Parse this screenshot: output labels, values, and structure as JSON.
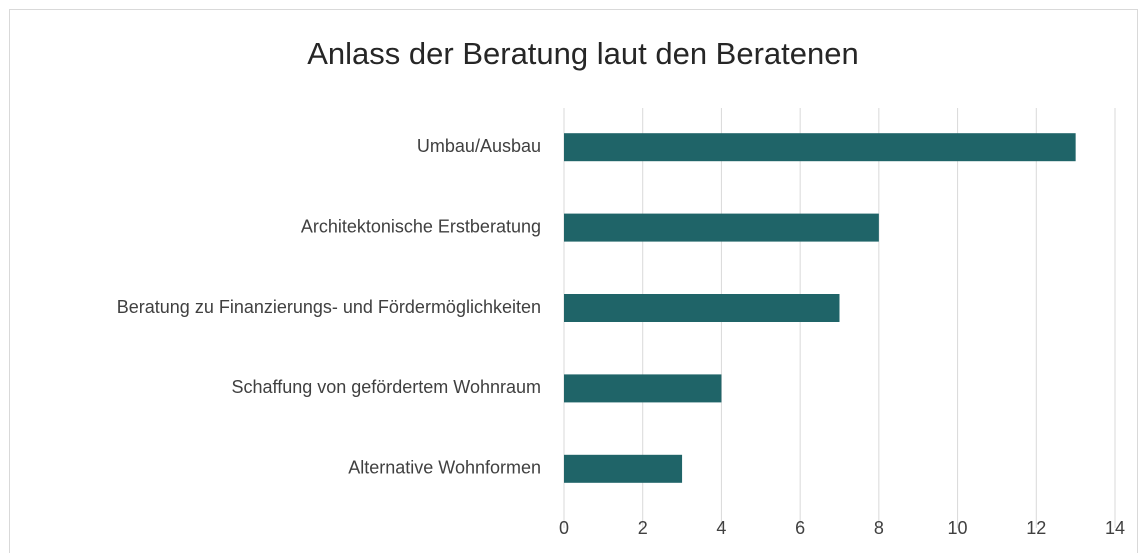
{
  "chart_data": {
    "type": "bar",
    "orientation": "horizontal",
    "title": "Anlass der Beratung laut den Beratenen",
    "categories": [
      "Umbau/Ausbau",
      "Architektonische Erstberatung",
      "Beratung zu Finanzierungs- und Fördermöglichkeiten",
      "Schaffung von gefördertem Wohnraum",
      "Alternative Wohnformen"
    ],
    "values": [
      13,
      8,
      7,
      4,
      3
    ],
    "color": "#1f6468",
    "xlim": [
      0,
      14
    ],
    "xticks": [
      0,
      2,
      4,
      6,
      8,
      10,
      12,
      14
    ],
    "grid": true
  }
}
